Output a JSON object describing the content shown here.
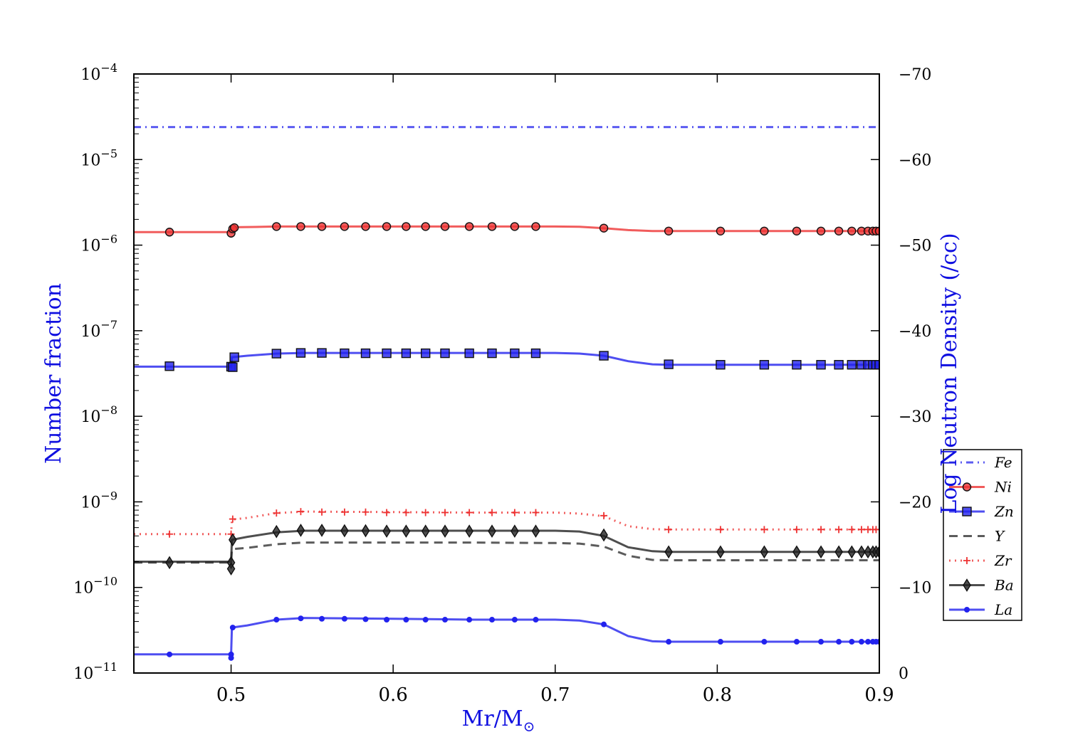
{
  "chart_data": {
    "type": "line",
    "xlabel": "Mr/M",
    "xlabel_sub": "⊙",
    "ylabel": "Number fraction",
    "y2label": "Log Neutron Density (/cc)",
    "xlim": [
      0.44,
      0.9
    ],
    "ylim": [
      1e-11,
      0.0001
    ],
    "y_scale": "log",
    "y2lim": [
      0,
      -70
    ],
    "x_ticks": [
      "0.5",
      "0.6",
      "0.7",
      "0.8",
      "0.9"
    ],
    "x_tick_values": [
      0.5,
      0.6,
      0.7,
      0.8,
      0.9
    ],
    "y_ticks": [
      {
        "base": "10",
        "exp": "−11",
        "value": 1e-11
      },
      {
        "base": "10",
        "exp": "−10",
        "value": 1e-10
      },
      {
        "base": "10",
        "exp": "−9",
        "value": 1e-09
      },
      {
        "base": "10",
        "exp": "−8",
        "value": 1e-08
      },
      {
        "base": "10",
        "exp": "−7",
        "value": 1e-07
      },
      {
        "base": "10",
        "exp": "−6",
        "value": 1e-06
      },
      {
        "base": "10",
        "exp": "−5",
        "value": 1e-05
      },
      {
        "base": "10",
        "exp": "−4",
        "value": 0.0001
      }
    ],
    "y2_ticks": [
      {
        "label": "0",
        "value": 0
      },
      {
        "label": "−10",
        "value": -10
      },
      {
        "label": "−20",
        "value": -20
      },
      {
        "label": "−30",
        "value": -30
      },
      {
        "label": "−40",
        "value": -40
      },
      {
        "label": "−50",
        "value": -50
      },
      {
        "label": "−60",
        "value": -60
      },
      {
        "label": "−70",
        "value": -70
      }
    ],
    "grid": false,
    "legend_position": "right",
    "series": [
      {
        "name": "Fe",
        "color": "#3333ee",
        "style": "dashdot",
        "marker": "none",
        "x": [
          0.44,
          0.5,
          0.6,
          0.7,
          0.8,
          0.9
        ],
        "y": [
          2.4e-05,
          2.4e-05,
          2.4e-05,
          2.4e-05,
          2.4e-05,
          2.4e-05
        ],
        "marker_x": []
      },
      {
        "name": "Ni",
        "color": "#ee3333",
        "style": "solid",
        "marker": "circle",
        "x": [
          0.44,
          0.5,
          0.5005,
          0.502,
          0.515,
          0.528,
          0.55,
          0.6,
          0.65,
          0.7,
          0.715,
          0.73,
          0.745,
          0.76,
          0.77,
          0.8,
          0.85,
          0.9
        ],
        "y": [
          1.42e-06,
          1.42e-06,
          1.58e-06,
          1.62e-06,
          1.63e-06,
          1.65e-06,
          1.65e-06,
          1.65e-06,
          1.65e-06,
          1.65e-06,
          1.64e-06,
          1.58e-06,
          1.5e-06,
          1.46e-06,
          1.46e-06,
          1.46e-06,
          1.46e-06,
          1.46e-06
        ],
        "marker_x": [
          0.462,
          0.5,
          0.501,
          0.502,
          0.528,
          0.543,
          0.556,
          0.57,
          0.583,
          0.596,
          0.608,
          0.62,
          0.632,
          0.647,
          0.661,
          0.675,
          0.688,
          0.73,
          0.77,
          0.802,
          0.829,
          0.849,
          0.864,
          0.875,
          0.883,
          0.889,
          0.893,
          0.896,
          0.898,
          0.9
        ],
        "marker_y": [
          1.42e-06,
          1.38e-06,
          1.55e-06,
          1.6e-06,
          1.65e-06,
          1.65e-06,
          1.65e-06,
          1.65e-06,
          1.65e-06,
          1.65e-06,
          1.65e-06,
          1.65e-06,
          1.65e-06,
          1.65e-06,
          1.65e-06,
          1.65e-06,
          1.65e-06,
          1.58e-06,
          1.46e-06,
          1.46e-06,
          1.46e-06,
          1.46e-06,
          1.46e-06,
          1.46e-06,
          1.46e-06,
          1.46e-06,
          1.46e-06,
          1.46e-06,
          1.46e-06,
          1.46e-06
        ]
      },
      {
        "name": "Zn",
        "color": "#2222ee",
        "style": "solid",
        "marker": "square",
        "x": [
          0.44,
          0.5,
          0.5005,
          0.51,
          0.528,
          0.545,
          0.6,
          0.65,
          0.7,
          0.715,
          0.73,
          0.745,
          0.76,
          0.77,
          0.8,
          0.85,
          0.9
        ],
        "y": [
          3.8e-08,
          3.8e-08,
          4.9e-08,
          5.1e-08,
          5.4e-08,
          5.5e-08,
          5.5e-08,
          5.5e-08,
          5.5e-08,
          5.4e-08,
          5.1e-08,
          4.4e-08,
          4.05e-08,
          4e-08,
          4e-08,
          4e-08,
          4e-08
        ],
        "marker_x": [
          0.462,
          0.5,
          0.501,
          0.502,
          0.528,
          0.543,
          0.556,
          0.57,
          0.583,
          0.596,
          0.608,
          0.62,
          0.632,
          0.647,
          0.661,
          0.675,
          0.688,
          0.73,
          0.77,
          0.802,
          0.829,
          0.849,
          0.864,
          0.875,
          0.883,
          0.889,
          0.893,
          0.896,
          0.898,
          0.9
        ],
        "marker_y": [
          3.85e-08,
          3.8e-08,
          3.75e-08,
          4.9e-08,
          5.4e-08,
          5.5e-08,
          5.5e-08,
          5.45e-08,
          5.45e-08,
          5.45e-08,
          5.45e-08,
          5.45e-08,
          5.45e-08,
          5.45e-08,
          5.45e-08,
          5.45e-08,
          5.45e-08,
          5.1e-08,
          4.05e-08,
          4e-08,
          4e-08,
          4e-08,
          4e-08,
          4e-08,
          4e-08,
          4e-08,
          4e-08,
          4e-08,
          4e-08,
          4e-08
        ]
      },
      {
        "name": "Y",
        "color": "#333333",
        "style": "dashed",
        "marker": "none",
        "x": [
          0.44,
          0.5,
          0.5005,
          0.51,
          0.528,
          0.545,
          0.6,
          0.65,
          0.7,
          0.715,
          0.73,
          0.745,
          0.76,
          0.77,
          0.8,
          0.85,
          0.9
        ],
        "y": [
          1.95e-10,
          1.95e-10,
          2.8e-10,
          2.9e-10,
          3.2e-10,
          3.35e-10,
          3.35e-10,
          3.35e-10,
          3.3e-10,
          3.25e-10,
          3e-10,
          2.35e-10,
          2.1e-10,
          2.08e-10,
          2.08e-10,
          2.08e-10,
          2.08e-10
        ],
        "marker_x": []
      },
      {
        "name": "Zr",
        "color": "#ee3333",
        "style": "dotted",
        "marker": "plus",
        "x": [
          0.44,
          0.5,
          0.5005,
          0.51,
          0.528,
          0.545,
          0.6,
          0.65,
          0.7,
          0.715,
          0.73,
          0.745,
          0.76,
          0.77,
          0.8,
          0.85,
          0.9
        ],
        "y": [
          4.2e-10,
          4.2e-10,
          6.2e-10,
          6.5e-10,
          7.4e-10,
          7.7e-10,
          7.6e-10,
          7.5e-10,
          7.5e-10,
          7.3e-10,
          6.8e-10,
          5.2e-10,
          4.8e-10,
          4.75e-10,
          4.75e-10,
          4.75e-10,
          4.75e-10
        ],
        "marker_x": [
          0.462,
          0.5,
          0.501,
          0.528,
          0.543,
          0.556,
          0.57,
          0.583,
          0.596,
          0.608,
          0.62,
          0.632,
          0.647,
          0.661,
          0.675,
          0.688,
          0.73,
          0.77,
          0.802,
          0.829,
          0.849,
          0.864,
          0.875,
          0.883,
          0.889,
          0.893,
          0.896,
          0.898,
          0.9
        ],
        "marker_y": [
          4.2e-10,
          4.2e-10,
          6.3e-10,
          7.4e-10,
          7.7e-10,
          7.6e-10,
          7.6e-10,
          7.6e-10,
          7.5e-10,
          7.5e-10,
          7.5e-10,
          7.5e-10,
          7.5e-10,
          7.5e-10,
          7.5e-10,
          7.5e-10,
          6.9e-10,
          4.75e-10,
          4.75e-10,
          4.75e-10,
          4.75e-10,
          4.75e-10,
          4.75e-10,
          4.75e-10,
          4.75e-10,
          4.75e-10,
          4.75e-10,
          4.75e-10,
          4.75e-10
        ]
      },
      {
        "name": "Ba",
        "color": "#222222",
        "style": "solid",
        "marker": "diamond",
        "x": [
          0.44,
          0.5,
          0.5005,
          0.51,
          0.528,
          0.545,
          0.6,
          0.65,
          0.7,
          0.715,
          0.73,
          0.745,
          0.76,
          0.77,
          0.8,
          0.85,
          0.9
        ],
        "y": [
          2e-10,
          2e-10,
          3.6e-10,
          3.9e-10,
          4.4e-10,
          4.6e-10,
          4.6e-10,
          4.6e-10,
          4.6e-10,
          4.5e-10,
          4e-10,
          2.95e-10,
          2.65e-10,
          2.6e-10,
          2.6e-10,
          2.6e-10,
          2.6e-10
        ],
        "marker_x": [
          0.462,
          0.5,
          0.5,
          0.501,
          0.528,
          0.543,
          0.556,
          0.57,
          0.583,
          0.596,
          0.608,
          0.62,
          0.632,
          0.647,
          0.661,
          0.675,
          0.688,
          0.73,
          0.77,
          0.802,
          0.829,
          0.849,
          0.864,
          0.875,
          0.883,
          0.889,
          0.893,
          0.896,
          0.898,
          0.9
        ],
        "marker_y": [
          1.95e-10,
          1.95e-10,
          1.65e-10,
          3.6e-10,
          4.5e-10,
          4.65e-10,
          4.65e-10,
          4.6e-10,
          4.6e-10,
          4.55e-10,
          4.55e-10,
          4.55e-10,
          4.55e-10,
          4.55e-10,
          4.55e-10,
          4.55e-10,
          4.55e-10,
          4.1e-10,
          2.6e-10,
          2.6e-10,
          2.6e-10,
          2.6e-10,
          2.6e-10,
          2.6e-10,
          2.6e-10,
          2.6e-10,
          2.6e-10,
          2.6e-10,
          2.6e-10,
          2.6e-10
        ]
      },
      {
        "name": "La",
        "color": "#2222ee",
        "style": "solid",
        "marker": "dot",
        "x": [
          0.44,
          0.5,
          0.5005,
          0.51,
          0.528,
          0.545,
          0.6,
          0.65,
          0.7,
          0.715,
          0.73,
          0.745,
          0.76,
          0.77,
          0.8,
          0.85,
          0.9
        ],
        "y": [
          1.65e-11,
          1.65e-11,
          3.4e-11,
          3.6e-11,
          4.2e-11,
          4.4e-11,
          4.3e-11,
          4.2e-11,
          4.2e-11,
          4.1e-11,
          3.7e-11,
          2.7e-11,
          2.35e-11,
          2.32e-11,
          2.32e-11,
          2.32e-11,
          2.32e-11
        ],
        "marker_x": [
          0.462,
          0.5,
          0.5,
          0.501,
          0.528,
          0.543,
          0.556,
          0.57,
          0.583,
          0.596,
          0.608,
          0.62,
          0.632,
          0.647,
          0.661,
          0.675,
          0.688,
          0.73,
          0.77,
          0.802,
          0.829,
          0.849,
          0.864,
          0.875,
          0.883,
          0.889,
          0.893,
          0.896,
          0.898,
          0.9
        ],
        "marker_y": [
          1.65e-11,
          1.65e-11,
          1.5e-11,
          3.4e-11,
          4.2e-11,
          4.35e-11,
          4.3e-11,
          4.3e-11,
          4.25e-11,
          4.2e-11,
          4.2e-11,
          4.2e-11,
          4.2e-11,
          4.2e-11,
          4.2e-11,
          4.2e-11,
          4.2e-11,
          3.7e-11,
          2.32e-11,
          2.32e-11,
          2.32e-11,
          2.32e-11,
          2.32e-11,
          2.32e-11,
          2.32e-11,
          2.32e-11,
          2.32e-11,
          2.32e-11,
          2.32e-11,
          2.32e-11
        ]
      }
    ]
  }
}
